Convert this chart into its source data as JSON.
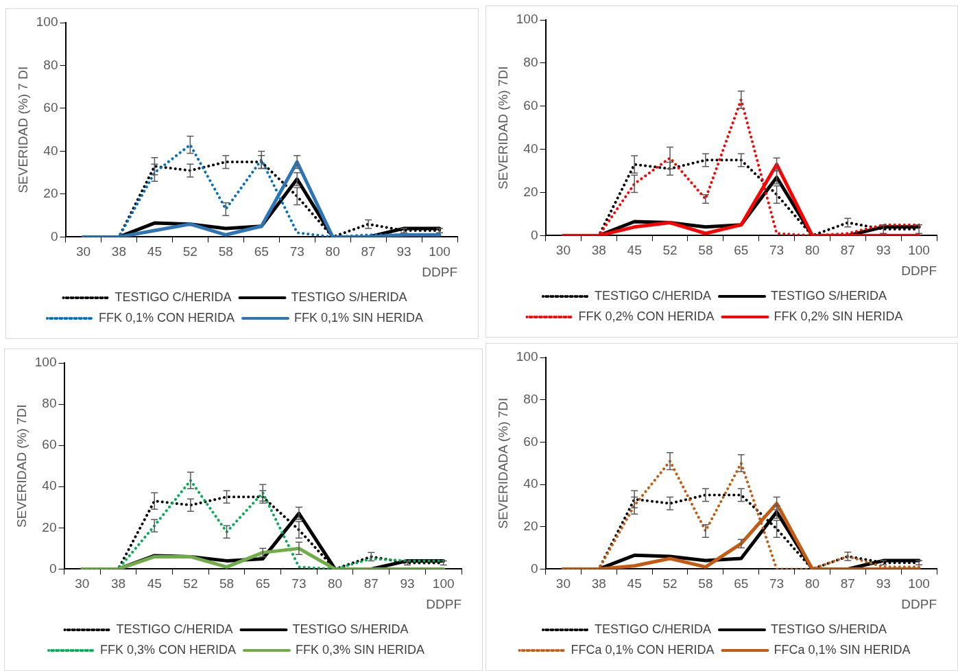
{
  "chart_data": [
    {
      "type": "line",
      "ylabel": "SEVERIDAD (%) 7 DI",
      "xlabel": "DDPF",
      "categories": [
        "30",
        "38",
        "45",
        "52",
        "58",
        "65",
        "73",
        "80",
        "87",
        "93",
        "100"
      ],
      "ylim": [
        0,
        100
      ],
      "yticks": [
        0,
        20,
        40,
        60,
        80,
        100
      ],
      "legend": "bottom",
      "marker": "none",
      "series": [
        {
          "name": "TESTIGO C/HERIDA",
          "color": "#000000",
          "line_style": "dotted",
          "values": [
            0,
            0,
            33,
            31,
            35,
            35,
            19,
            0,
            6,
            3,
            3
          ],
          "errors": [
            null,
            null,
            4,
            3,
            3,
            3,
            4,
            null,
            2,
            1,
            1
          ]
        },
        {
          "name": "TESTIGO S/HERIDA",
          "color": "#000000",
          "line_style": "solid",
          "values": [
            0,
            0,
            6.5,
            6,
            4,
            5,
            27,
            0,
            0,
            4,
            4
          ],
          "errors": [
            null,
            null,
            null,
            null,
            null,
            null,
            3,
            null,
            null,
            null,
            null
          ]
        },
        {
          "name": "FFK 0,1% CON HERIDA",
          "color": "#0070c0",
          "line_style": "dotted",
          "values": [
            0,
            0,
            30,
            43,
            13,
            36,
            2,
            0,
            1,
            1,
            1
          ],
          "errors": [
            null,
            null,
            4,
            4,
            3,
            4,
            null,
            null,
            null,
            null,
            null
          ]
        },
        {
          "name": "FFK 0,1% SIN HERIDA",
          "color": "#2e75b6",
          "line_style": "solid",
          "values": [
            0,
            0,
            3,
            6,
            1,
            5,
            35,
            0,
            0,
            1,
            1
          ],
          "errors": [
            null,
            null,
            null,
            null,
            null,
            null,
            3,
            null,
            null,
            null,
            null
          ]
        }
      ]
    },
    {
      "type": "line",
      "ylabel": "SEVERIDAD (%) 7DI",
      "xlabel": "DDPF",
      "categories": [
        "30",
        "38",
        "45",
        "52",
        "58",
        "65",
        "73",
        "80",
        "87",
        "93",
        "100"
      ],
      "ylim": [
        0,
        100
      ],
      "yticks": [
        0,
        20,
        40,
        60,
        80,
        100
      ],
      "legend": "bottom",
      "marker": "none",
      "series": [
        {
          "name": "TESTIGO C/HERIDA",
          "color": "#000000",
          "line_style": "dotted",
          "values": [
            0,
            0,
            33,
            31,
            35,
            35,
            19,
            0,
            6,
            3,
            3
          ],
          "errors": [
            null,
            null,
            4,
            3,
            3,
            3,
            4,
            null,
            2,
            2,
            2
          ]
        },
        {
          "name": "TESTIGO S/HERIDA",
          "color": "#000000",
          "line_style": "solid",
          "values": [
            0,
            0,
            6.5,
            6,
            4,
            5,
            27,
            0,
            0,
            4,
            4
          ],
          "errors": [
            null,
            null,
            null,
            null,
            null,
            null,
            3,
            null,
            null,
            null,
            null
          ]
        },
        {
          "name": "FFK 0,2% CON HERIDA",
          "color": "#ff0000",
          "line_style": "dotted",
          "values": [
            0,
            0,
            24,
            36,
            17,
            63,
            1,
            0,
            1,
            5,
            5
          ],
          "errors": [
            null,
            null,
            4,
            5,
            2,
            4,
            null,
            null,
            null,
            null,
            null
          ]
        },
        {
          "name": "FFK 0,2% SIN HERIDA",
          "color": "#ff0000",
          "line_style": "solid",
          "values": [
            0,
            0,
            4,
            6,
            1,
            5,
            33,
            0,
            0,
            0,
            0
          ],
          "errors": [
            null,
            null,
            null,
            null,
            null,
            null,
            3,
            null,
            null,
            null,
            null
          ]
        }
      ]
    },
    {
      "type": "line",
      "ylabel": "SEVERIDAD (%) 7DI",
      "xlabel": "DDPF",
      "categories": [
        "30",
        "38",
        "45",
        "52",
        "58",
        "65",
        "73",
        "80",
        "87",
        "93",
        "100"
      ],
      "ylim": [
        0,
        100
      ],
      "yticks": [
        0,
        20,
        40,
        60,
        80,
        100
      ],
      "legend": "bottom",
      "marker": "none",
      "series": [
        {
          "name": "TESTIGO C/HERIDA",
          "color": "#000000",
          "line_style": "dotted",
          "values": [
            0,
            0,
            33,
            31,
            35,
            35,
            19,
            0,
            6,
            3,
            3
          ],
          "errors": [
            null,
            null,
            4,
            3,
            3,
            3,
            4,
            null,
            2,
            1,
            1
          ]
        },
        {
          "name": "TESTIGO S/HERIDA",
          "color": "#000000",
          "line_style": "solid",
          "values": [
            0,
            0,
            6.5,
            6,
            4,
            5,
            27,
            0,
            0,
            4,
            4
          ],
          "errors": [
            null,
            null,
            null,
            null,
            null,
            null,
            3,
            null,
            null,
            null,
            null
          ]
        },
        {
          "name": "FFK 0,3% CON HERIDA",
          "color": "#00b050",
          "line_style": "dotted",
          "values": [
            0,
            0,
            21,
            43,
            18,
            37,
            1,
            0,
            5,
            4,
            4
          ],
          "errors": [
            null,
            null,
            3,
            4,
            3,
            4,
            null,
            null,
            null,
            null,
            null
          ]
        },
        {
          "name": "FFK 0,3% SIN HERIDA",
          "color": "#70ad47",
          "line_style": "solid",
          "values": [
            0,
            0,
            6,
            6,
            1,
            8,
            10,
            0,
            0,
            0,
            0
          ],
          "errors": [
            null,
            null,
            null,
            null,
            null,
            2,
            3,
            null,
            null,
            null,
            null
          ]
        }
      ]
    },
    {
      "type": "line",
      "ylabel": "SEVERIDADA (%) 7DI",
      "xlabel": "DDPF",
      "categories": [
        "30",
        "38",
        "45",
        "52",
        "58",
        "65",
        "73",
        "80",
        "87",
        "93",
        "100"
      ],
      "ylim": [
        0,
        100
      ],
      "yticks": [
        0,
        20,
        40,
        60,
        80,
        100
      ],
      "legend": "bottom",
      "marker": "none",
      "series": [
        {
          "name": "TESTIGO C/HERIDA",
          "color": "#000000",
          "line_style": "dotted",
          "values": [
            0,
            0,
            33,
            31,
            35,
            35,
            19,
            0,
            6,
            3,
            3
          ],
          "errors": [
            null,
            null,
            4,
            3,
            3,
            3,
            4,
            null,
            2,
            1,
            1
          ]
        },
        {
          "name": "TESTIGO S/HERIDA",
          "color": "#000000",
          "line_style": "solid",
          "values": [
            0,
            0,
            6.5,
            6,
            4,
            5,
            27,
            0,
            0,
            4,
            4
          ],
          "errors": [
            null,
            null,
            null,
            null,
            null,
            null,
            3,
            null,
            null,
            null,
            null
          ]
        },
        {
          "name": "FFCa 0,1% CON HERIDA",
          "color": "#c55a11",
          "line_style": "dotted",
          "values": [
            0,
            0,
            30,
            51,
            18,
            50,
            0,
            0,
            6,
            1,
            1
          ],
          "errors": [
            null,
            null,
            4,
            4,
            3,
            4,
            null,
            null,
            null,
            null,
            null
          ]
        },
        {
          "name": "FFCa 0,1% SIN HERIDA",
          "color": "#c55a11",
          "line_style": "solid",
          "values": [
            0,
            0,
            1.5,
            5,
            1,
            12,
            31,
            0,
            0,
            0,
            0
          ],
          "errors": [
            null,
            null,
            null,
            null,
            null,
            2,
            3,
            null,
            null,
            null,
            null
          ]
        }
      ]
    }
  ]
}
